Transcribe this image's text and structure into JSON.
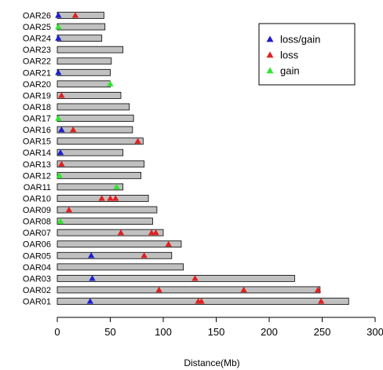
{
  "chart_data": {
    "type": "bar",
    "orientation": "horizontal",
    "xlabel": "Distance(Mb)",
    "xlim": [
      0,
      300
    ],
    "xticks": [
      "0",
      "50",
      "100",
      "150",
      "200",
      "250",
      "300"
    ],
    "categories": [
      "OAR01",
      "OAR02",
      "OAR03",
      "OAR04",
      "OAR05",
      "OAR06",
      "OAR07",
      "OAR08",
      "OAR09",
      "OAR10",
      "OAR11",
      "OAR12",
      "OAR13",
      "OAR14",
      "OAR15",
      "OAR16",
      "OAR17",
      "OAR18",
      "OAR19",
      "OAR20",
      "OAR21",
      "OAR22",
      "OAR23",
      "OAR24",
      "OAR25",
      "OAR26"
    ],
    "values": [
      275,
      248,
      224,
      119,
      108,
      117,
      100,
      90,
      94,
      86,
      62,
      79,
      82,
      62,
      81,
      71,
      72,
      68,
      60,
      50,
      50,
      51,
      62,
      42,
      45,
      44
    ],
    "bar_color": "#c0c0c0",
    "legend": {
      "position": "top-right",
      "entries": [
        {
          "label": "loss/gain",
          "color": "#1f1fcc"
        },
        {
          "label": "loss",
          "color": "#e02020"
        },
        {
          "label": "gain",
          "color": "#2ee82e"
        }
      ]
    },
    "markers": [
      {
        "chr": "OAR01",
        "type": "loss/gain",
        "pos": 31
      },
      {
        "chr": "OAR01",
        "type": "loss",
        "pos": 133
      },
      {
        "chr": "OAR01",
        "type": "loss",
        "pos": 136
      },
      {
        "chr": "OAR01",
        "type": "loss",
        "pos": 249
      },
      {
        "chr": "OAR02",
        "type": "loss",
        "pos": 96
      },
      {
        "chr": "OAR02",
        "type": "loss",
        "pos": 176
      },
      {
        "chr": "OAR02",
        "type": "loss",
        "pos": 246
      },
      {
        "chr": "OAR03",
        "type": "loss/gain",
        "pos": 33
      },
      {
        "chr": "OAR03",
        "type": "loss",
        "pos": 130
      },
      {
        "chr": "OAR05",
        "type": "loss/gain",
        "pos": 32
      },
      {
        "chr": "OAR05",
        "type": "loss",
        "pos": 82
      },
      {
        "chr": "OAR06",
        "type": "loss",
        "pos": 105
      },
      {
        "chr": "OAR07",
        "type": "loss",
        "pos": 60
      },
      {
        "chr": "OAR07",
        "type": "loss",
        "pos": 89
      },
      {
        "chr": "OAR07",
        "type": "loss",
        "pos": 93
      },
      {
        "chr": "OAR08",
        "type": "gain",
        "pos": 3
      },
      {
        "chr": "OAR09",
        "type": "loss",
        "pos": 11
      },
      {
        "chr": "OAR10",
        "type": "loss",
        "pos": 42
      },
      {
        "chr": "OAR10",
        "type": "loss",
        "pos": 50
      },
      {
        "chr": "OAR10",
        "type": "loss",
        "pos": 55
      },
      {
        "chr": "OAR11",
        "type": "gain",
        "pos": 56
      },
      {
        "chr": "OAR12",
        "type": "gain",
        "pos": 2
      },
      {
        "chr": "OAR13",
        "type": "loss",
        "pos": 4
      },
      {
        "chr": "OAR14",
        "type": "loss/gain",
        "pos": 3
      },
      {
        "chr": "OAR15",
        "type": "loss",
        "pos": 76
      },
      {
        "chr": "OAR16",
        "type": "loss/gain",
        "pos": 4
      },
      {
        "chr": "OAR16",
        "type": "loss",
        "pos": 15
      },
      {
        "chr": "OAR17",
        "type": "gain",
        "pos": 1
      },
      {
        "chr": "OAR19",
        "type": "loss",
        "pos": 4
      },
      {
        "chr": "OAR20",
        "type": "gain",
        "pos": 50
      },
      {
        "chr": "OAR21",
        "type": "loss/gain",
        "pos": 1
      },
      {
        "chr": "OAR24",
        "type": "loss/gain",
        "pos": 1
      },
      {
        "chr": "OAR25",
        "type": "gain",
        "pos": 1
      },
      {
        "chr": "OAR26",
        "type": "loss/gain",
        "pos": 1
      },
      {
        "chr": "OAR26",
        "type": "loss",
        "pos": 17
      }
    ]
  }
}
